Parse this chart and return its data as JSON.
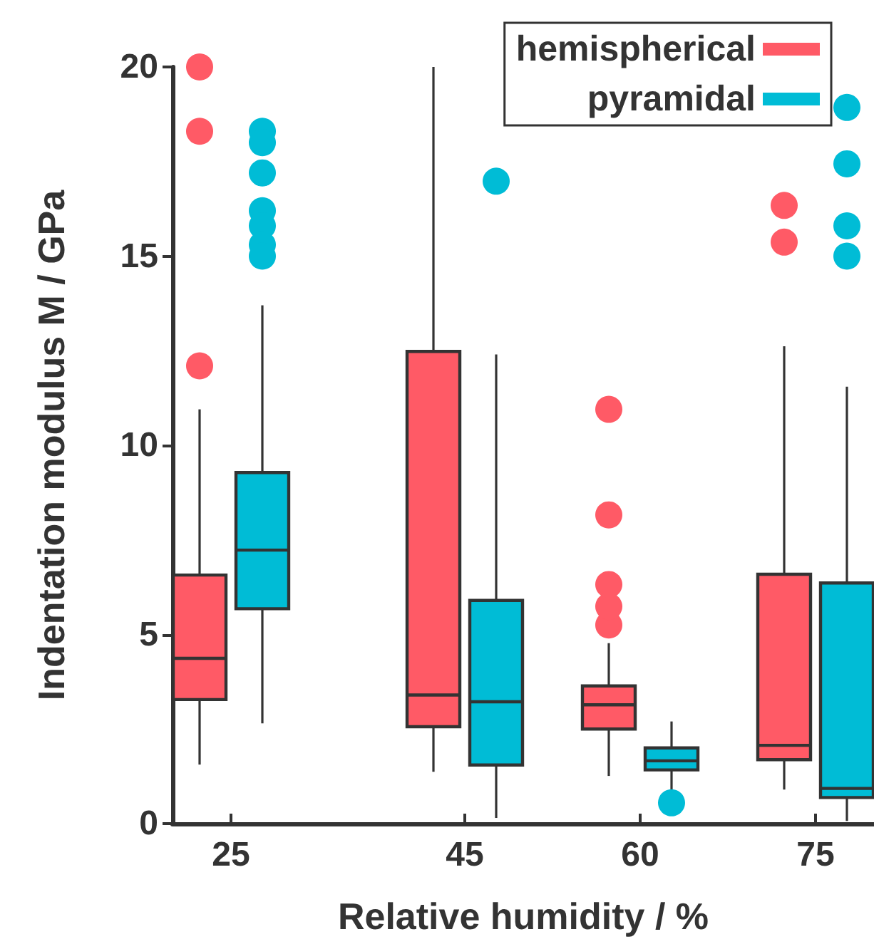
{
  "chart_data": {
    "type": "box",
    "xlabel": "Relative humidity / %",
    "ylabel": "Indentation modulus M / GPa",
    "x": [
      25,
      45,
      60,
      75
    ],
    "xlim": [
      20,
      80
    ],
    "xticks": [
      25,
      45,
      60,
      75
    ],
    "ylim": [
      0,
      20
    ],
    "yticks": [
      0,
      5,
      10,
      15,
      20
    ],
    "legend": "top right",
    "grid": false,
    "series": [
      {
        "name": "hemispherical",
        "color": "#ff5a66",
        "boxes": [
          {
            "low": 1.56,
            "q1": 3.28,
            "median": 4.37,
            "q3": 6.57,
            "high": 10.95,
            "outliers": [
              20,
              18.3,
              12.1
            ]
          },
          {
            "low": 1.37,
            "q1": 2.56,
            "median": 3.4,
            "q3": 12.48,
            "high": 20
          },
          {
            "low": 1.26,
            "q1": 2.5,
            "median": 3.14,
            "q3": 3.64,
            "high": 4.77,
            "outliers": [
              5.25,
              5.74,
              6.32,
              8.16,
              10.95
            ]
          },
          {
            "low": 0.9,
            "q1": 1.69,
            "median": 2.07,
            "q3": 6.59,
            "high": 12.62,
            "outliers": [
              16.34,
              15.37
            ]
          }
        ]
      },
      {
        "name": "pyramidal",
        "color": "#00bcd6",
        "boxes": [
          {
            "low": 2.65,
            "q1": 5.68,
            "median": 7.23,
            "q3": 9.28,
            "high": 13.7,
            "outliers": [
              18.3,
              18.0,
              17.2,
              16.2,
              15.8,
              15.3,
              15.0
            ]
          },
          {
            "low": 0.15,
            "q1": 1.55,
            "median": 3.22,
            "q3": 5.9,
            "high": 12.4,
            "outliers": [
              16.98
            ]
          },
          {
            "low": 0.9,
            "q1": 1.42,
            "median": 1.66,
            "q3": 2.0,
            "high": 2.7,
            "outliers": [
              0.55
            ]
          },
          {
            "low": 0.07,
            "q1": 0.69,
            "median": 0.93,
            "q3": 6.36,
            "high": 11.55,
            "outliers": [
              18.93,
              17.44,
              15.8,
              15.0
            ]
          }
        ]
      }
    ]
  }
}
